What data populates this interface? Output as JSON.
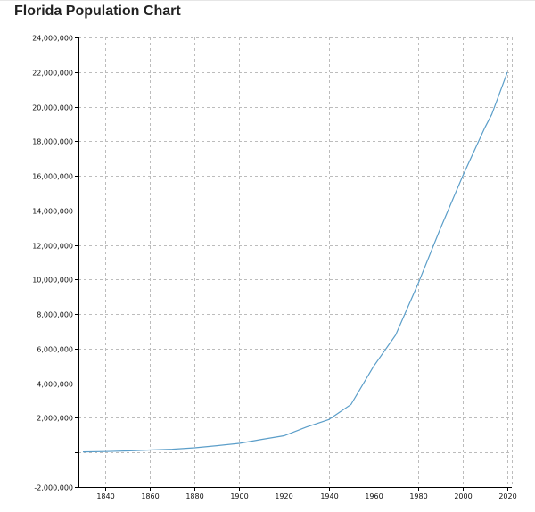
{
  "page": {
    "title": "Florida Population Chart"
  },
  "colors": {
    "line": "#5b9ec9",
    "grid": "#bcbcbc",
    "axis": "#000000",
    "text": "#111111"
  },
  "chart_data": {
    "type": "line",
    "title": "Florida Population Chart",
    "xlabel": "",
    "ylabel": "",
    "xlim": [
      1828,
      2022
    ],
    "ylim": [
      -2000000,
      24000000
    ],
    "grid": true,
    "legend": "none",
    "x_ticks": [
      1840,
      1860,
      1880,
      1900,
      1920,
      1940,
      1960,
      1980,
      2000,
      2020
    ],
    "x_tick_labels": [
      "1840",
      "1860",
      "1880",
      "1900",
      "1920",
      "1940",
      "1960",
      "1980",
      "2000",
      "2020"
    ],
    "y_ticks": [
      -2000000,
      0,
      2000000,
      4000000,
      6000000,
      8000000,
      10000000,
      12000000,
      14000000,
      16000000,
      18000000,
      20000000,
      22000000,
      24000000
    ],
    "y_tick_labels": [
      "-2,000,000",
      "",
      "2,000,000",
      "4,000,000",
      "6,000,000",
      "8,000,000",
      "10,000,000",
      "12,000,000",
      "14,000,000",
      "16,000,000",
      "18,000,000",
      "20,000,000",
      "22,000,000",
      "24,000,000"
    ],
    "series": [
      {
        "name": "Florida Population",
        "x": [
          1830,
          1840,
          1850,
          1860,
          1870,
          1880,
          1890,
          1900,
          1910,
          1920,
          1930,
          1940,
          1950,
          1960,
          1970,
          1980,
          1990,
          2000,
          2010,
          2013,
          2020
        ],
        "y": [
          34730,
          54477,
          87445,
          140424,
          187748,
          269493,
          391422,
          528542,
          752619,
          968470,
          1468211,
          1897414,
          2771305,
          4951560,
          6789443,
          9746324,
          12937926,
          15982378,
          18801310,
          19552860,
          21992000
        ]
      }
    ]
  }
}
